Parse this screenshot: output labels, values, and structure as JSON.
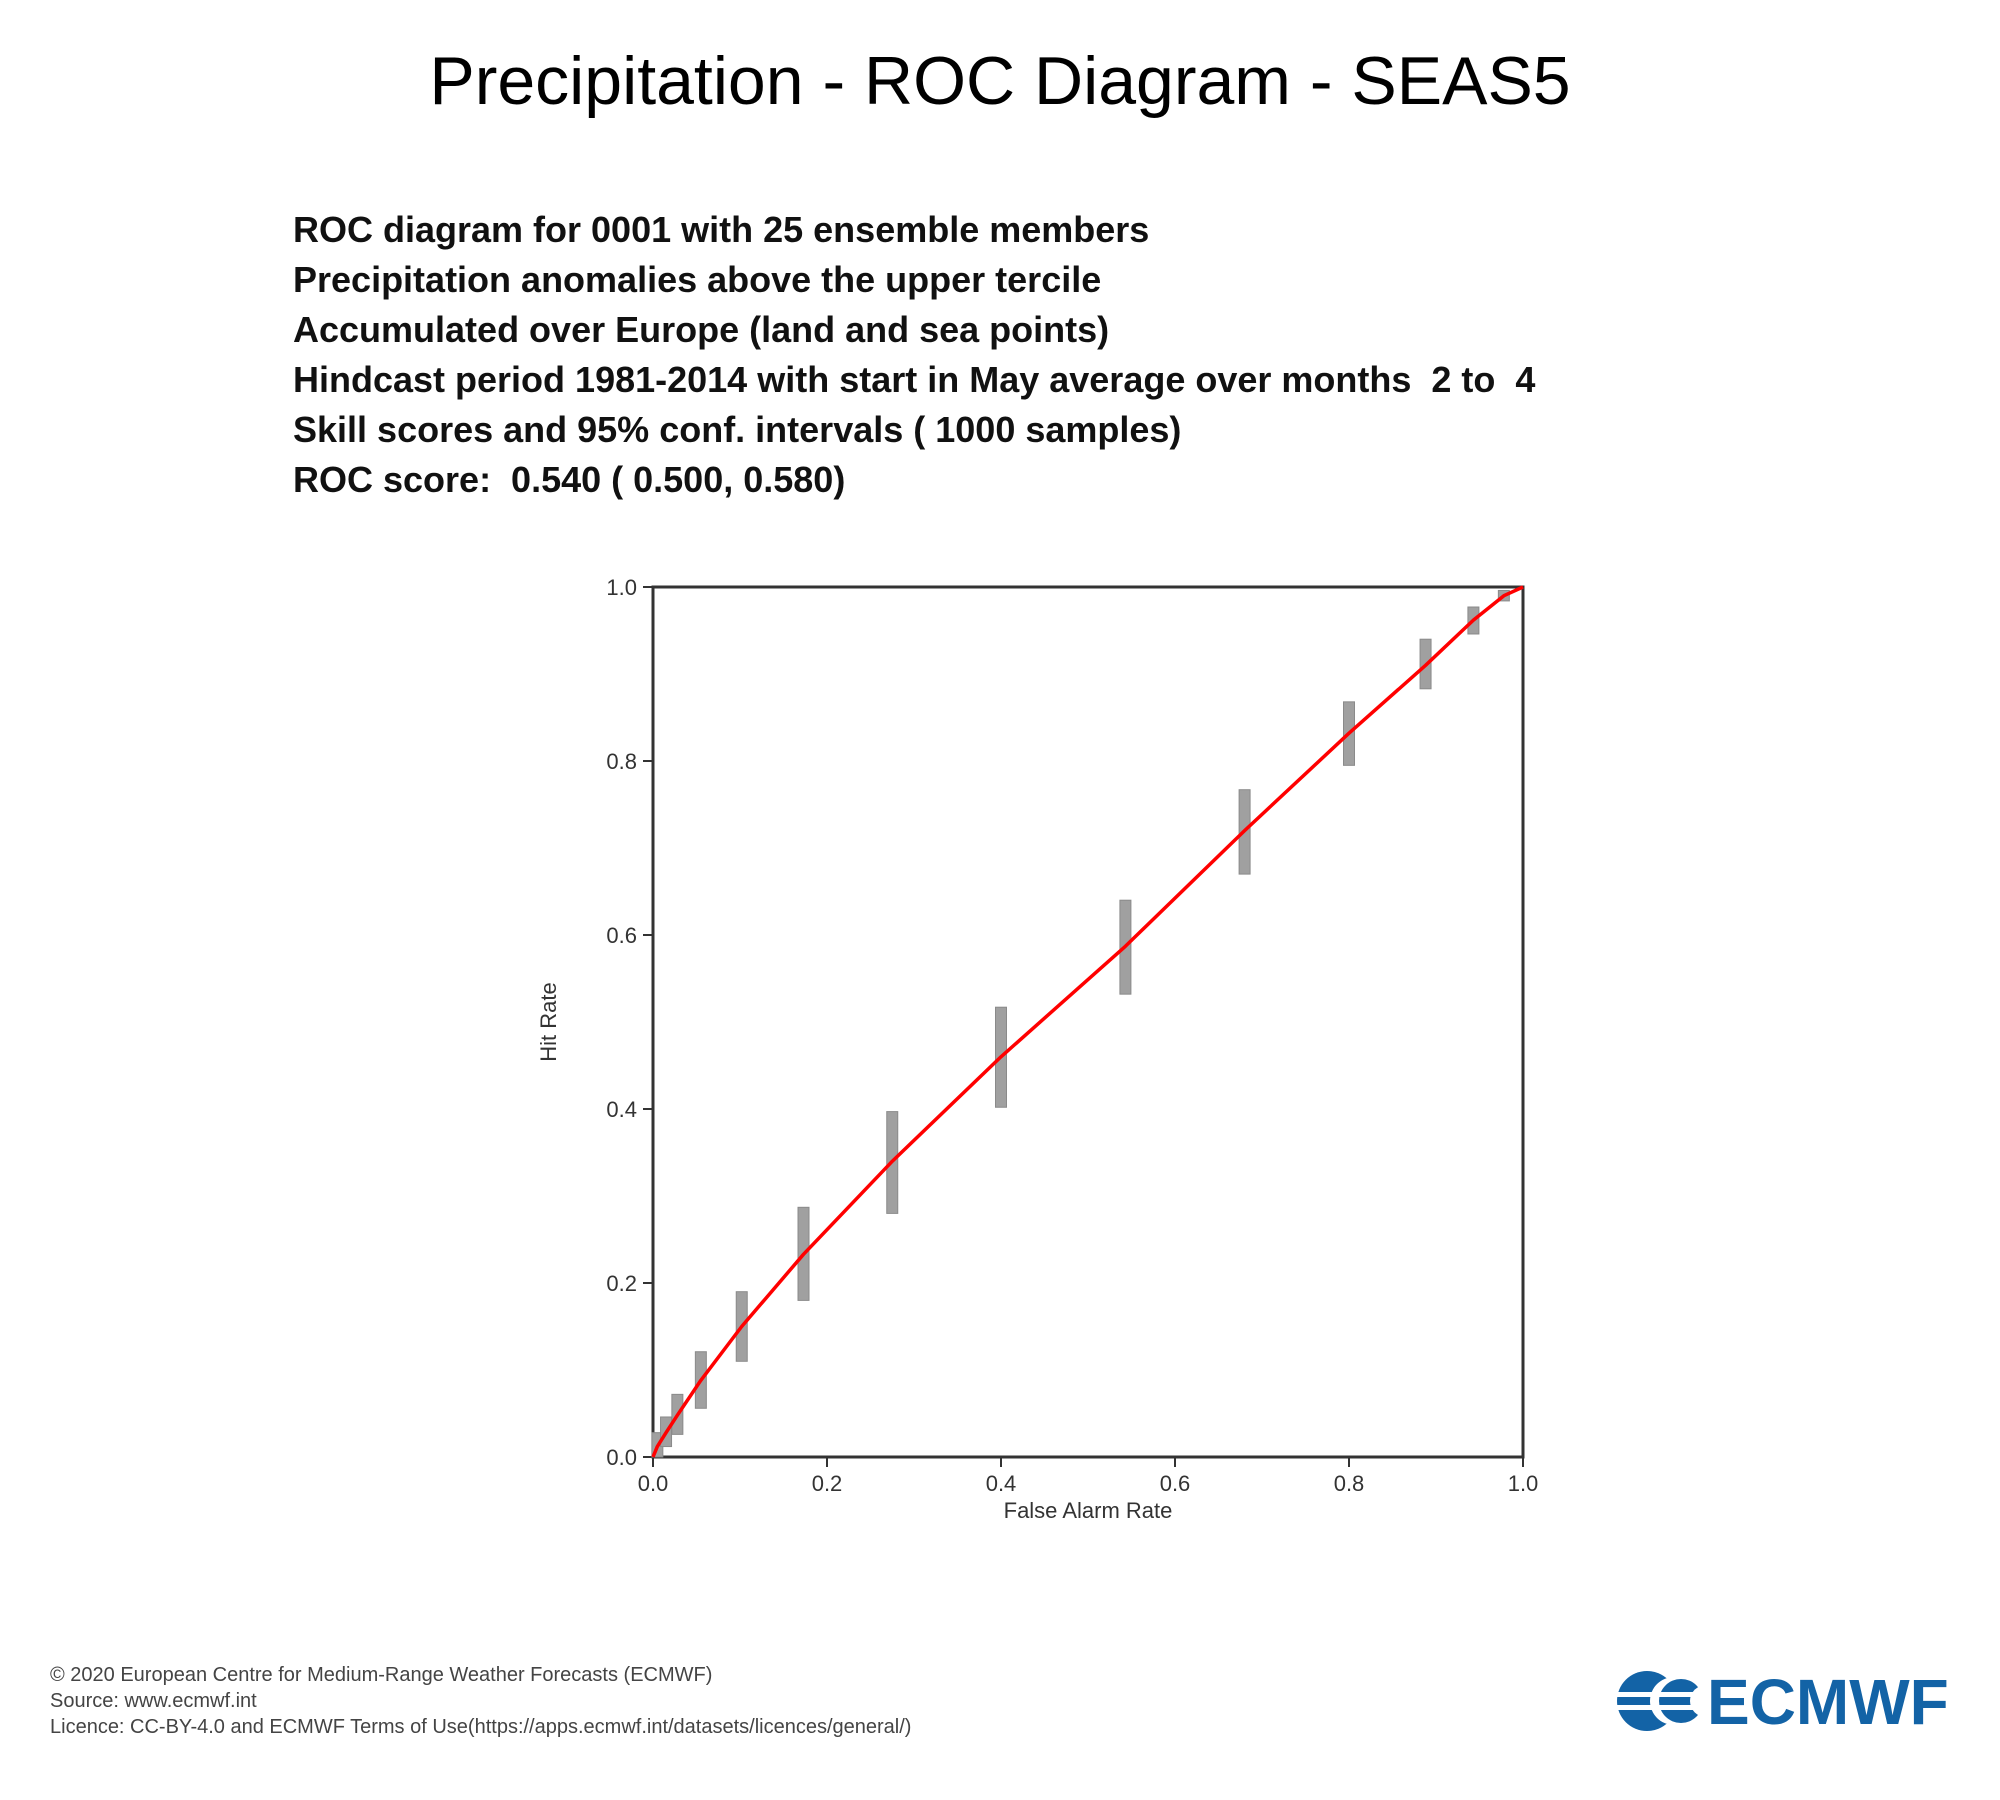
{
  "title": "Precipitation - ROC Diagram - SEAS5",
  "info_lines": [
    "ROC diagram for 0001 with 25 ensemble members",
    "Precipitation anomalies above the upper tercile",
    "Accumulated over Europe (land and sea points)",
    "Hindcast period 1981-2014 with start in May average over months  2 to  4",
    "Skill scores and 95% conf. intervals ( 1000 samples)",
    "ROC score:  0.540 ( 0.500, 0.580)"
  ],
  "chart_data": {
    "type": "line",
    "xlabel": "False Alarm Rate",
    "ylabel": "Hit Rate",
    "xlim": [
      0,
      1
    ],
    "ylim": [
      0,
      1
    ],
    "xticks": [
      "0.0",
      "0.2",
      "0.4",
      "0.6",
      "0.8",
      "1.0"
    ],
    "yticks": [
      "0.0",
      "0.2",
      "0.4",
      "0.6",
      "0.8",
      "1.0"
    ],
    "grid": false,
    "line_color": "#ff0000",
    "error_bar_color": "#a0a0a0",
    "points": [
      {
        "x": 0.0,
        "y": 0.0,
        "low": 0.0,
        "high": 0.0
      },
      {
        "x": 0.005,
        "y": 0.012,
        "low": 0.0,
        "high": 0.028
      },
      {
        "x": 0.015,
        "y": 0.028,
        "low": 0.012,
        "high": 0.046
      },
      {
        "x": 0.028,
        "y": 0.048,
        "low": 0.026,
        "high": 0.072
      },
      {
        "x": 0.055,
        "y": 0.088,
        "low": 0.056,
        "high": 0.121
      },
      {
        "x": 0.102,
        "y": 0.15,
        "low": 0.11,
        "high": 0.19
      },
      {
        "x": 0.173,
        "y": 0.233,
        "low": 0.18,
        "high": 0.287
      },
      {
        "x": 0.275,
        "y": 0.34,
        "low": 0.28,
        "high": 0.397
      },
      {
        "x": 0.4,
        "y": 0.46,
        "low": 0.402,
        "high": 0.517
      },
      {
        "x": 0.543,
        "y": 0.587,
        "low": 0.532,
        "high": 0.64
      },
      {
        "x": 0.68,
        "y": 0.72,
        "low": 0.67,
        "high": 0.767
      },
      {
        "x": 0.8,
        "y": 0.832,
        "low": 0.795,
        "high": 0.868
      },
      {
        "x": 0.888,
        "y": 0.91,
        "low": 0.883,
        "high": 0.94
      },
      {
        "x": 0.943,
        "y": 0.962,
        "low": 0.946,
        "high": 0.977
      },
      {
        "x": 0.978,
        "y": 0.99,
        "low": 0.984,
        "high": 0.996
      },
      {
        "x": 1.0,
        "y": 1.0,
        "low": 1.0,
        "high": 1.0
      }
    ]
  },
  "footer": {
    "copyright": "© 2020 European Centre for Medium-Range Weather Forecasts (ECMWF)",
    "source": "Source: www.ecmwf.int",
    "licence": "Licence: CC-BY-4.0 and ECMWF Terms of Use(https://apps.ecmwf.int/datasets/licences/general/)"
  },
  "logo": {
    "text": "ECMWF",
    "color": "#1363a6"
  }
}
